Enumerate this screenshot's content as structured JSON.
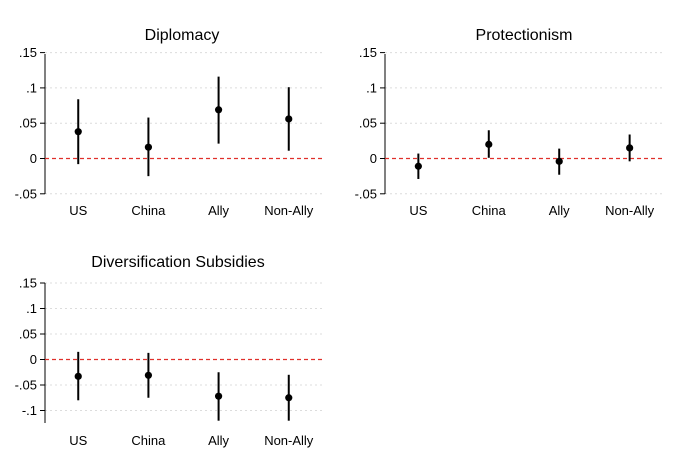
{
  "colors": {
    "zero_line": "#e0302b",
    "grid": "#dcdcdc",
    "marks": "#000000",
    "axis": "#000000"
  },
  "chart_data": [
    {
      "type": "scatter",
      "title": "Diplomacy",
      "categories": [
        "US",
        "China",
        "Ally",
        "Non-Ally"
      ],
      "estimates": [
        0.038,
        0.016,
        0.069,
        0.056
      ],
      "ci_low": [
        -0.008,
        -0.025,
        0.021,
        0.011
      ],
      "ci_high": [
        0.084,
        0.058,
        0.116,
        0.101
      ],
      "ylim": [
        -0.05,
        0.15
      ],
      "yticks": [
        -0.05,
        0,
        0.05,
        0.1,
        0.15
      ],
      "ytick_labels": [
        "-.05",
        "0",
        ".05",
        ".1",
        ".15"
      ],
      "reference_line": 0,
      "grid": true
    },
    {
      "type": "scatter",
      "title": "Protectionism",
      "categories": [
        "US",
        "China",
        "Ally",
        "Non-Ally"
      ],
      "estimates": [
        -0.011,
        0.02,
        -0.004,
        0.015
      ],
      "ci_low": [
        -0.029,
        0.001,
        -0.023,
        -0.004
      ],
      "ci_high": [
        0.007,
        0.04,
        0.014,
        0.034
      ],
      "ylim": [
        -0.05,
        0.15
      ],
      "yticks": [
        -0.05,
        0,
        0.05,
        0.1,
        0.15
      ],
      "ytick_labels": [
        "-.05",
        "0",
        ".05",
        ".1",
        ".15"
      ],
      "reference_line": 0,
      "grid": true
    },
    {
      "type": "scatter",
      "title": "Diversification Subsidies",
      "categories": [
        "US",
        "China",
        "Ally",
        "Non-Ally"
      ],
      "estimates": [
        -0.033,
        -0.031,
        -0.072,
        -0.075
      ],
      "ci_low": [
        -0.08,
        -0.075,
        -0.12,
        -0.12
      ],
      "ci_high": [
        0.015,
        0.013,
        -0.025,
        -0.03
      ],
      "ylim": [
        -0.12,
        0.15
      ],
      "yticks": [
        -0.1,
        -0.05,
        0,
        0.05,
        0.1,
        0.15
      ],
      "ytick_labels": [
        "-.1",
        "-.05",
        "0",
        ".05",
        ".1",
        ".15"
      ],
      "reference_line": 0,
      "grid": true
    }
  ]
}
